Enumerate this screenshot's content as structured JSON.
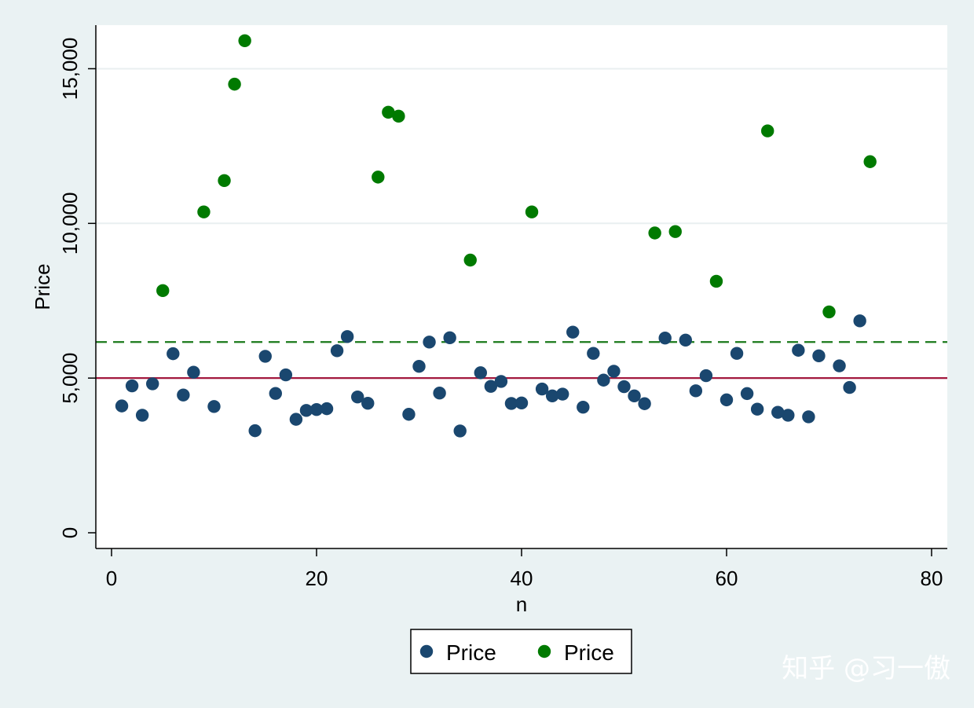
{
  "chart_data": {
    "type": "scatter",
    "xlabel": "n",
    "ylabel": "Price",
    "xlim": [
      0,
      80
    ],
    "ylim": [
      0,
      16500
    ],
    "x_ticks": [
      0,
      20,
      40,
      60,
      80
    ],
    "y_ticks": [
      0,
      5000,
      10000,
      15000
    ],
    "x_tick_labels": [
      "0",
      "20",
      "40",
      "60",
      "80"
    ],
    "y_tick_labels": [
      "0",
      "5,000",
      "10,000",
      "15,000"
    ],
    "grid": "horizontal",
    "reference_lines": [
      {
        "y": 6165,
        "color": "#1a7a1a",
        "style": "dashed"
      },
      {
        "y": 5000,
        "color": "#a3193e",
        "style": "solid"
      }
    ],
    "legend_position": "bottom",
    "series": [
      {
        "name": "Price",
        "color": "#1a476f",
        "points": [
          [
            1,
            4099
          ],
          [
            2,
            4749
          ],
          [
            3,
            3799
          ],
          [
            4,
            4816
          ],
          [
            6,
            5788
          ],
          [
            7,
            4453
          ],
          [
            8,
            5189
          ],
          [
            10,
            4082
          ],
          [
            14,
            3299
          ],
          [
            15,
            5705
          ],
          [
            16,
            4504
          ],
          [
            17,
            5104
          ],
          [
            18,
            3667
          ],
          [
            19,
            3955
          ],
          [
            20,
            3984
          ],
          [
            21,
            4010
          ],
          [
            22,
            5886
          ],
          [
            23,
            6342
          ],
          [
            24,
            4389
          ],
          [
            25,
            4187
          ],
          [
            29,
            3829
          ],
          [
            30,
            5379
          ],
          [
            31,
            6165
          ],
          [
            32,
            4516
          ],
          [
            33,
            6303
          ],
          [
            34,
            3291
          ],
          [
            36,
            5172
          ],
          [
            37,
            4733
          ],
          [
            38,
            4890
          ],
          [
            39,
            4181
          ],
          [
            40,
            4195
          ],
          [
            42,
            4647
          ],
          [
            43,
            4425
          ],
          [
            44,
            4482
          ],
          [
            45,
            6486
          ],
          [
            46,
            4060
          ],
          [
            47,
            5798
          ],
          [
            48,
            4934
          ],
          [
            49,
            5222
          ],
          [
            50,
            4723
          ],
          [
            51,
            4424
          ],
          [
            52,
            4172
          ],
          [
            54,
            6295
          ],
          [
            56,
            6229
          ],
          [
            57,
            4589
          ],
          [
            58,
            5079
          ],
          [
            60,
            4296
          ],
          [
            61,
            5799
          ],
          [
            62,
            4499
          ],
          [
            63,
            3995
          ],
          [
            65,
            3895
          ],
          [
            66,
            3798
          ],
          [
            67,
            5899
          ],
          [
            68,
            3748
          ],
          [
            69,
            5719
          ],
          [
            71,
            5397
          ],
          [
            72,
            4697
          ],
          [
            73,
            6850
          ]
        ]
      },
      {
        "name": "Price",
        "color": "#007a00",
        "points": [
          [
            5,
            7827
          ],
          [
            9,
            10372
          ],
          [
            11,
            11385
          ],
          [
            12,
            14500
          ],
          [
            13,
            15906
          ],
          [
            26,
            11497
          ],
          [
            27,
            13594
          ],
          [
            28,
            13466
          ],
          [
            35,
            8814
          ],
          [
            41,
            10371
          ],
          [
            53,
            9690
          ],
          [
            55,
            9735
          ],
          [
            59,
            8129
          ],
          [
            64,
            12990
          ],
          [
            70,
            7140
          ],
          [
            74,
            11995
          ]
        ]
      }
    ]
  },
  "watermark": "知乎 @习一傲"
}
